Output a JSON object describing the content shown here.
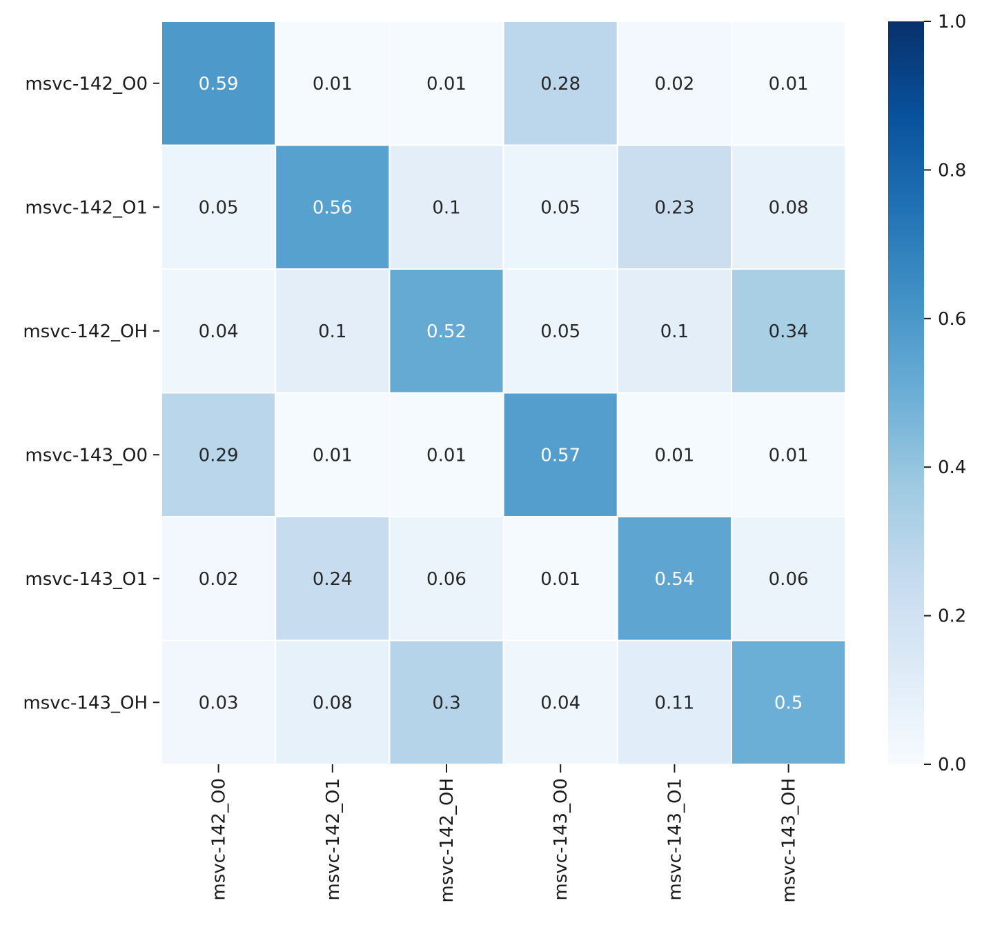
{
  "chart_data": {
    "type": "heatmap",
    "title": "",
    "xlabel": "",
    "ylabel": "",
    "row_labels": [
      "msvc-142_O0",
      "msvc-142_O1",
      "msvc-142_OH",
      "msvc-143_O0",
      "msvc-143_O1",
      "msvc-143_OH"
    ],
    "col_labels": [
      "msvc-142_O0",
      "msvc-142_O1",
      "msvc-142_OH",
      "msvc-143_O0",
      "msvc-143_O1",
      "msvc-143_OH"
    ],
    "values": [
      [
        0.59,
        0.01,
        0.01,
        0.28,
        0.02,
        0.01
      ],
      [
        0.05,
        0.56,
        0.1,
        0.05,
        0.23,
        0.08
      ],
      [
        0.04,
        0.1,
        0.52,
        0.05,
        0.1,
        0.34
      ],
      [
        0.29,
        0.01,
        0.01,
        0.57,
        0.01,
        0.01
      ],
      [
        0.02,
        0.24,
        0.06,
        0.01,
        0.54,
        0.06
      ],
      [
        0.03,
        0.08,
        0.3,
        0.04,
        0.11,
        0.5
      ]
    ],
    "cell_text": [
      [
        "0.59",
        "0.01",
        "0.01",
        "0.28",
        "0.02",
        "0.01"
      ],
      [
        "0.05",
        "0.56",
        "0.1",
        "0.05",
        "0.23",
        "0.08"
      ],
      [
        "0.04",
        "0.1",
        "0.52",
        "0.05",
        "0.1",
        "0.34"
      ],
      [
        "0.29",
        "0.01",
        "0.01",
        "0.57",
        "0.01",
        "0.01"
      ],
      [
        "0.02",
        "0.24",
        "0.06",
        "0.01",
        "0.54",
        "0.06"
      ],
      [
        "0.03",
        "0.08",
        "0.3",
        "0.04",
        "0.11",
        "0.5"
      ]
    ],
    "colorbar": {
      "range": [
        0.0,
        1.0
      ],
      "ticks": [
        "0.0",
        "0.2",
        "0.4",
        "0.6",
        "0.8",
        "1.0"
      ],
      "colormap": "Blues",
      "colors": [
        "#f7fbff",
        "#deebf7",
        "#c6dbef",
        "#9ecae1",
        "#6baed6",
        "#4292c6",
        "#2171b5",
        "#08519c",
        "#08306b"
      ]
    },
    "label_colors": {
      "dark": "#262626",
      "light": "#ffffff"
    },
    "grid": false
  }
}
